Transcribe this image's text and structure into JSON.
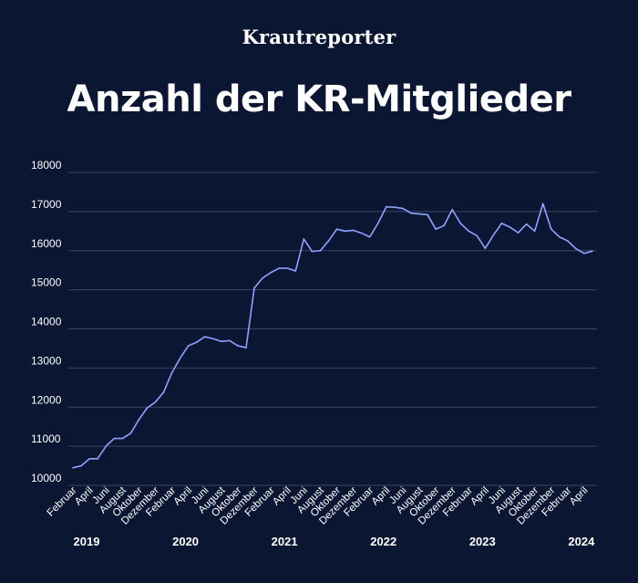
{
  "brand": "Krautreporter",
  "title": "Anzahl der KR-Mitglieder",
  "colors": {
    "background": "#0b1633",
    "line": "#8fa2ff",
    "grid": "#3b4666"
  },
  "chart_data": {
    "type": "line",
    "title": "Anzahl der KR-Mitglieder",
    "xlabel": "",
    "ylabel": "",
    "ylim": [
      10000,
      18000
    ],
    "yticks": [
      10000,
      11000,
      12000,
      13000,
      14000,
      15000,
      16000,
      17000,
      18000
    ],
    "grid": true,
    "legend": "none",
    "x_tick_labels": [
      "Februar",
      "April",
      "Juni",
      "August",
      "Oktober",
      "Dezember",
      "Februar",
      "April",
      "Juni",
      "August",
      "Oktober",
      "Dezember",
      "Februar",
      "April",
      "Juni",
      "August",
      "Oktober",
      "Dezember",
      "Februar",
      "April",
      "Juni",
      "August",
      "Oktober",
      "Dezember",
      "Februar",
      "April",
      "Juni",
      "August",
      "Oktober",
      "Dezember",
      "Februar",
      "April"
    ],
    "years": [
      {
        "label": "2019",
        "month_index": 0
      },
      {
        "label": "2020",
        "month_index": 12
      },
      {
        "label": "2021",
        "month_index": 24
      },
      {
        "label": "2022",
        "month_index": 36
      },
      {
        "label": "2023",
        "month_index": 48
      },
      {
        "label": "2024",
        "month_index": 60
      }
    ],
    "series": [
      {
        "values": [
          10450,
          10500,
          10680,
          10680,
          11000,
          11200,
          11200,
          11330,
          11680,
          11980,
          12130,
          12380,
          12880,
          13250,
          13570,
          13660,
          13800,
          13750,
          13680,
          13700,
          13570,
          13520,
          15050,
          15300,
          15440,
          15550,
          15550,
          15480,
          16300,
          15980,
          16000,
          16250,
          16550,
          16500,
          16520,
          16450,
          16350,
          16700,
          17120,
          17110,
          17080,
          16960,
          16940,
          16920,
          16550,
          16640,
          17050,
          16700,
          16500,
          16380,
          16060,
          16400,
          16700,
          16600,
          16460,
          16680,
          16500,
          17200,
          16550,
          16350,
          16250,
          16050,
          15930,
          15990
        ]
      }
    ]
  }
}
